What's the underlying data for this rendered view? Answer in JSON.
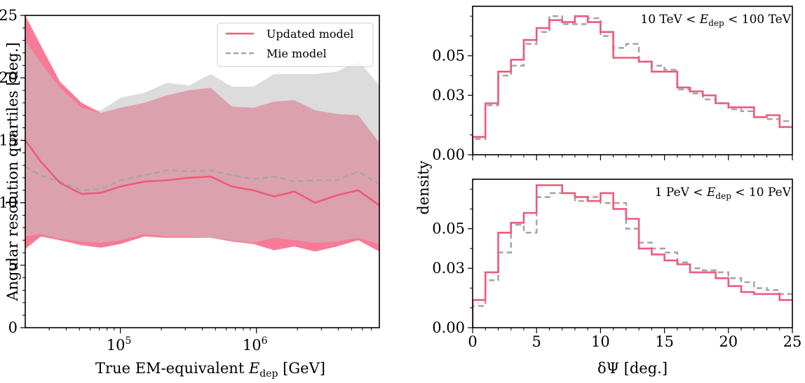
{
  "colors": {
    "updated": "#ee5a7a",
    "updated_band": "#f77a97",
    "mie": "#a6a6a6",
    "mie_band": "#dcdcdc",
    "overlap": "#dca1ae"
  },
  "chart_data": [
    {
      "type": "line",
      "ylabel": "Angular resolution quartiles [deg.]",
      "xlabel": "True EM-equivalent E_dep [GeV]",
      "xscale": "log",
      "xlim": [
        20000,
        8000000
      ],
      "ylim": [
        0,
        25
      ],
      "xticks": [
        {
          "value": 100000,
          "base": "10",
          "exp": "5"
        },
        {
          "value": 1000000,
          "base": "10",
          "exp": "6"
        }
      ],
      "yticks": [
        0,
        5,
        10,
        15,
        20,
        25
      ],
      "legend_position": "upper-right",
      "x": [
        20000,
        26000,
        36000,
        52000,
        72000,
        100000,
        150000,
        220000,
        320000,
        460000,
        660000,
        950000,
        1350000,
        1900000,
        2700000,
        3900000,
        5600000,
        8000000
      ],
      "series": [
        {
          "name": "Updated model",
          "style": "solid",
          "median": [
            15.0,
            13.3,
            11.6,
            10.7,
            10.8,
            11.3,
            11.7,
            11.8,
            12.0,
            12.1,
            11.3,
            11.0,
            10.5,
            10.9,
            10.0,
            10.6,
            11.0,
            9.8
          ],
          "upper": [
            25.0,
            22.6,
            19.7,
            18.0,
            17.2,
            17.6,
            18.0,
            18.6,
            19.0,
            19.2,
            17.7,
            17.6,
            18.1,
            18.2,
            17.4,
            17.1,
            17.0,
            14.8
          ],
          "lower": [
            6.3,
            7.3,
            7.0,
            6.6,
            6.4,
            6.7,
            7.3,
            7.2,
            7.2,
            7.2,
            6.9,
            6.7,
            6.2,
            6.5,
            6.1,
            6.5,
            7.0,
            6.1
          ]
        },
        {
          "name": "Mie model",
          "style": "dashed",
          "median": [
            12.9,
            12.2,
            11.7,
            11.0,
            11.1,
            11.8,
            12.2,
            12.6,
            12.5,
            12.6,
            12.2,
            11.9,
            12.1,
            11.7,
            11.8,
            11.8,
            12.5,
            11.5
          ],
          "upper": [
            23.0,
            21.2,
            19.2,
            17.6,
            17.4,
            18.4,
            18.8,
            19.6,
            19.4,
            20.3,
            19.3,
            19.3,
            20.3,
            20.3,
            20.3,
            20.5,
            21.4,
            19.4
          ],
          "lower": [
            7.3,
            7.5,
            7.1,
            6.9,
            6.8,
            7.0,
            7.5,
            7.3,
            7.3,
            7.2,
            7.0,
            6.8,
            7.2,
            7.0,
            6.8,
            6.9,
            7.2,
            6.7
          ]
        }
      ]
    },
    {
      "type": "histogram",
      "annotation": {
        "pre": "10 TeV < ",
        "var": "E",
        "sub": "dep",
        "post": " < 100 TeV"
      },
      "ylabel": "density",
      "xlim": [
        0,
        25
      ],
      "ylim": [
        0,
        0.075
      ],
      "yticks": [
        "0.00",
        "0.03",
        "0.05"
      ],
      "bin_edges": [
        0,
        1,
        2,
        3,
        4,
        5,
        6,
        7,
        8,
        9,
        10,
        11,
        12,
        13,
        14,
        15,
        16,
        17,
        18,
        19,
        20,
        21,
        22,
        23,
        24,
        25
      ],
      "series": [
        {
          "name": "Updated model",
          "style": "solid",
          "values": [
            0.009,
            0.026,
            0.042,
            0.048,
            0.058,
            0.064,
            0.068,
            0.067,
            0.07,
            0.067,
            0.062,
            0.049,
            0.049,
            0.047,
            0.042,
            0.042,
            0.034,
            0.032,
            0.03,
            0.026,
            0.024,
            0.024,
            0.019,
            0.02,
            0.014
          ]
        },
        {
          "name": "Mie model",
          "style": "dashed",
          "values": [
            0.008,
            0.025,
            0.04,
            0.045,
            0.056,
            0.062,
            0.07,
            0.066,
            0.066,
            0.069,
            0.06,
            0.054,
            0.056,
            0.047,
            0.045,
            0.043,
            0.033,
            0.031,
            0.028,
            0.026,
            0.023,
            0.022,
            0.019,
            0.018,
            0.017
          ]
        }
      ]
    },
    {
      "type": "histogram",
      "annotation": {
        "pre": "1 PeV < ",
        "var": "E",
        "sub": "dep",
        "post": " < 10 PeV"
      },
      "xlabel": "δΨ [deg.]",
      "xlim": [
        0,
        25
      ],
      "ylim": [
        0,
        0.075
      ],
      "xticks": [
        0,
        5,
        10,
        15,
        20,
        25
      ],
      "yticks": [
        "0.00",
        "0.03",
        "0.05"
      ],
      "bin_edges": [
        0,
        1,
        2,
        3,
        4,
        5,
        6,
        7,
        8,
        9,
        10,
        11,
        12,
        13,
        14,
        15,
        16,
        17,
        18,
        19,
        20,
        21,
        22,
        23,
        24,
        25
      ],
      "series": [
        {
          "name": "Updated model",
          "style": "solid",
          "values": [
            0.014,
            0.028,
            0.048,
            0.053,
            0.058,
            0.072,
            0.072,
            0.068,
            0.066,
            0.064,
            0.068,
            0.06,
            0.055,
            0.04,
            0.037,
            0.034,
            0.032,
            0.028,
            0.028,
            0.025,
            0.021,
            0.018,
            0.017,
            0.017,
            0.014
          ]
        },
        {
          "name": "Mie model",
          "style": "dashed",
          "values": [
            0.011,
            0.024,
            0.038,
            0.052,
            0.048,
            0.066,
            0.068,
            0.068,
            0.064,
            0.066,
            0.063,
            0.063,
            0.05,
            0.043,
            0.04,
            0.038,
            0.033,
            0.03,
            0.029,
            0.028,
            0.025,
            0.023,
            0.02,
            0.019,
            0.017
          ]
        }
      ]
    }
  ]
}
